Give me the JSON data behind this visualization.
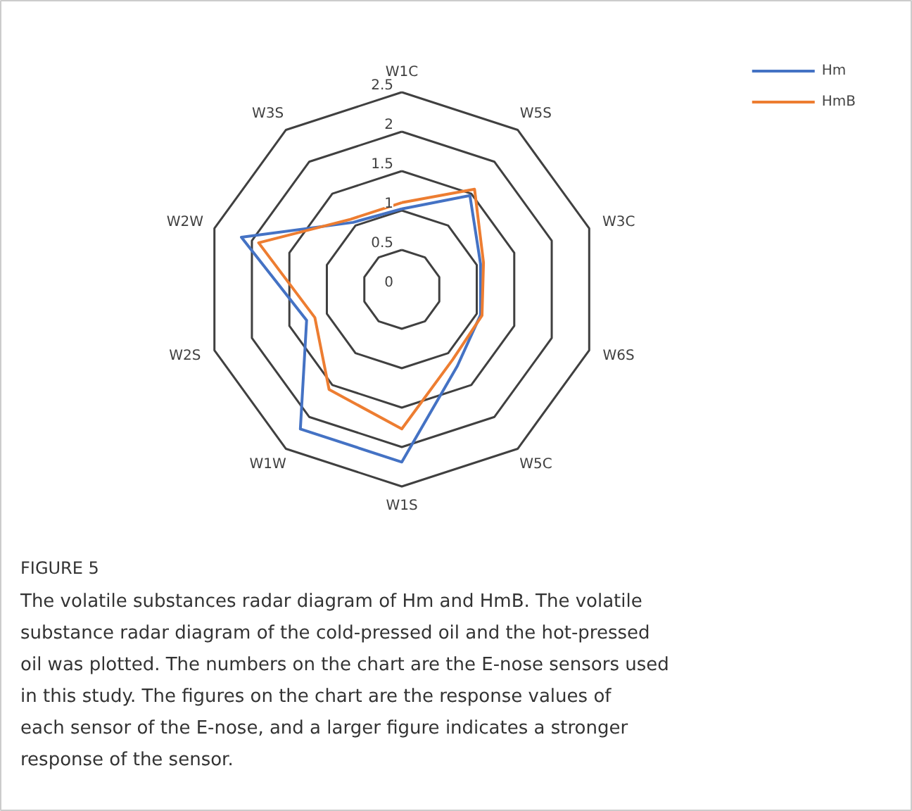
{
  "chart_data": {
    "type": "radar",
    "categories": [
      "W1C",
      "W5S",
      "W3C",
      "W6S",
      "W5C",
      "W1S",
      "W1W",
      "W2S",
      "W2W",
      "W3S"
    ],
    "series": [
      {
        "name": "Hm",
        "color": "#4472c4",
        "values": [
          1.02,
          1.47,
          1.05,
          1.05,
          1.2,
          2.19,
          2.19,
          1.27,
          2.14,
          1.05
        ]
      },
      {
        "name": "HmB",
        "color": "#ed7d31",
        "values": [
          1.1,
          1.57,
          1.09,
          1.07,
          1.1,
          1.77,
          1.57,
          1.16,
          1.91,
          1.1
        ]
      }
    ],
    "ylim": [
      0,
      2.5
    ],
    "yticks": [
      0,
      0.5,
      1,
      1.5,
      2,
      2.5
    ],
    "grid": true,
    "legend": "top right",
    "marker": "none",
    "line_style": "solid",
    "annotations": [
      "FIGURE 5",
      "The volatile substances radar diagram of Hm and HmB. The volatile substance radar diagram of the cold-pressed oil and the hot-pressed oil was plotted. The numbers on the chart are the E-nose sensors used in this study. The figures on the chart are the response values of each sensor of the E-nose, and a larger figure indicates a stronger response of the sensor."
    ]
  }
}
